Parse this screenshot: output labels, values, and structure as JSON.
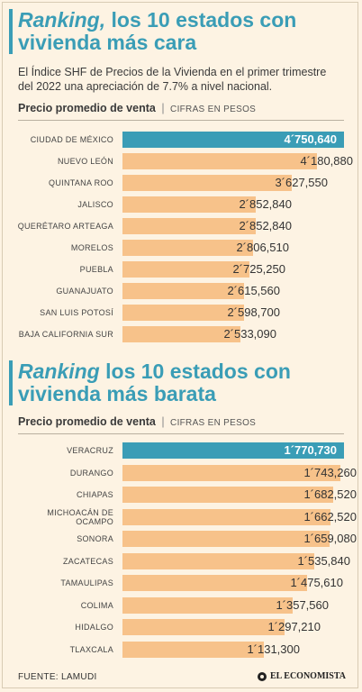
{
  "section1": {
    "title_em": "Ranking,",
    "title_rest": " los 10 estados con vivienda más cara",
    "intro": "El Índice SHF de Precios de la Vivienda en el primer trimestre del 2022 una apreciación de 7.7% a nivel nacional.",
    "label_bold": "Precio promedio de venta",
    "label_sep": "|",
    "label_sub": "CIFRAS EN PESOS"
  },
  "section2": {
    "title_em": "Ranking",
    "title_rest": " los 10 estados con vivienda más barata",
    "label_bold": "Precio promedio de venta",
    "label_sep": "|",
    "label_sub": "CIFRAS EN PESOS"
  },
  "colors": {
    "highlight": "#3a9db6",
    "bar": "#f7c28a",
    "background": "#fdf3e3"
  },
  "chart_data": [
    {
      "type": "bar",
      "orientation": "horizontal",
      "title": "Ranking, los 10 estados con vivienda más cara",
      "categories": [
        "CIUDAD DE MÉXICO",
        "NUEVO LEÓN",
        "QUINTANA ROO",
        "JALISCO",
        "QUERÉTARO ARTEAGA",
        "MORELOS",
        "PUEBLA",
        "GUANAJUATO",
        "SAN LUIS POTOSÍ",
        "BAJA CALIFORNIA SUR"
      ],
      "values": [
        4750640,
        4180880,
        3627550,
        2852840,
        2852840,
        2806510,
        2725250,
        2615560,
        2598700,
        2533090
      ],
      "labels": [
        "4´750,640",
        "4´180,880",
        "3´627,550",
        "2´852,840",
        "2´852,840",
        "2´806,510",
        "2´725,250",
        "2´615,560",
        "2´598,700",
        "2´533,090"
      ],
      "highlight_index": 0
    },
    {
      "type": "bar",
      "orientation": "horizontal",
      "title": "Ranking los 10 estados con vivienda más barata",
      "categories": [
        "VERACRUZ",
        "DURANGO",
        "CHIAPAS",
        "MICHOACÁN DE OCAMPO",
        "SONORA",
        "ZACATECAS",
        "TAMAULIPAS",
        "COLIMA",
        "HIDALGO",
        "TLAXCALA"
      ],
      "values": [
        1770730,
        1743260,
        1682520,
        1662520,
        1659080,
        1535840,
        1475610,
        1357560,
        1297210,
        1131300
      ],
      "labels": [
        "1´770,730",
        "1´743,260",
        "1´682,520",
        "1´662,520",
        "1´659,080",
        "1´535,840",
        "1´475,610",
        "1´357,560",
        "1´297,210",
        "1´131,300"
      ],
      "highlight_index": 0
    }
  ],
  "footer": {
    "source": "FUENTE: LAMUDI",
    "brand": "EL ECONOMISTA"
  }
}
